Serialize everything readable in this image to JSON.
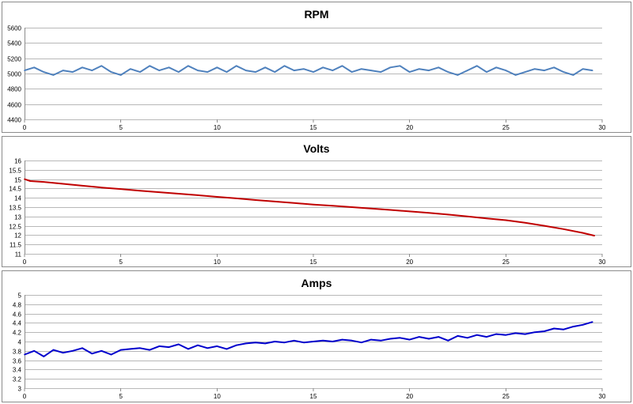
{
  "colors": {
    "rpm": "#4f81bd",
    "volts": "#c00000",
    "amps": "#0000cc",
    "grid": "#b8b8b8"
  },
  "chart_data": [
    {
      "type": "line",
      "title": "RPM",
      "xlim": [
        0,
        30
      ],
      "ylim": [
        4400,
        5600
      ],
      "x_ticks": [
        0,
        5,
        10,
        15,
        20,
        25,
        30
      ],
      "y_ticks": [
        4400,
        4600,
        4800,
        5000,
        5200,
        5400,
        5600
      ],
      "grid": true,
      "legend": "none",
      "series": [
        {
          "color": "#4f81bd",
          "x": [
            0,
            0.5,
            1,
            1.5,
            2,
            2.5,
            3,
            3.5,
            4,
            4.5,
            5,
            5.5,
            6,
            6.5,
            7,
            7.5,
            8,
            8.5,
            9,
            9.5,
            10,
            10.5,
            11,
            11.5,
            12,
            12.5,
            13,
            13.5,
            14,
            14.5,
            15,
            15.5,
            16,
            16.5,
            17,
            17.5,
            18,
            18.5,
            19,
            19.5,
            20,
            20.5,
            21,
            21.5,
            22,
            22.5,
            23,
            23.5,
            24,
            24.5,
            25,
            25.5,
            26,
            26.5,
            27,
            27.5,
            28,
            28.5,
            29,
            29.5
          ],
          "y": [
            5040,
            5080,
            5020,
            4980,
            5040,
            5020,
            5080,
            5040,
            5100,
            5020,
            4980,
            5060,
            5020,
            5100,
            5040,
            5080,
            5020,
            5100,
            5040,
            5020,
            5080,
            5020,
            5100,
            5040,
            5020,
            5080,
            5020,
            5100,
            5040,
            5060,
            5020,
            5080,
            5040,
            5100,
            5020,
            5060,
            5040,
            5020,
            5080,
            5100,
            5020,
            5060,
            5040,
            5080,
            5020,
            4980,
            5040,
            5100,
            5020,
            5080,
            5040,
            4980,
            5020,
            5060,
            5040,
            5080,
            5020,
            4980,
            5060,
            5040
          ]
        }
      ]
    },
    {
      "type": "line",
      "title": "Volts",
      "xlim": [
        0,
        30
      ],
      "ylim": [
        11,
        16
      ],
      "x_ticks": [
        0,
        5,
        10,
        15,
        20,
        25,
        30
      ],
      "y_ticks": [
        11,
        11.5,
        12,
        12.5,
        13,
        13.5,
        14,
        14.5,
        15,
        15.5,
        16
      ],
      "grid": true,
      "legend": "none",
      "series": [
        {
          "color": "#c00000",
          "x": [
            0,
            0.3,
            1,
            2,
            3,
            4,
            5,
            6,
            7,
            8,
            9,
            10,
            11,
            12,
            13,
            14,
            15,
            16,
            17,
            18,
            19,
            20,
            21,
            22,
            23,
            24,
            25,
            26,
            27,
            28,
            29,
            29.6
          ],
          "y": [
            15.0,
            14.9,
            14.85,
            14.75,
            14.65,
            14.55,
            14.47,
            14.38,
            14.3,
            14.22,
            14.14,
            14.05,
            13.97,
            13.88,
            13.8,
            13.72,
            13.64,
            13.57,
            13.5,
            13.43,
            13.35,
            13.27,
            13.19,
            13.1,
            13.0,
            12.9,
            12.8,
            12.66,
            12.5,
            12.32,
            12.12,
            11.97
          ]
        }
      ]
    },
    {
      "type": "line",
      "title": "Amps",
      "xlim": [
        0,
        30
      ],
      "ylim": [
        3,
        5
      ],
      "x_ticks": [
        0,
        5,
        10,
        15,
        20,
        25,
        30
      ],
      "y_ticks": [
        3,
        3.2,
        3.4,
        3.6,
        3.8,
        4,
        4.2,
        4.4,
        4.6,
        4.8,
        5
      ],
      "grid": true,
      "legend": "none",
      "series": [
        {
          "color": "#0000cc",
          "x": [
            0,
            0.5,
            1,
            1.5,
            2,
            2.5,
            3,
            3.5,
            4,
            4.5,
            5,
            5.5,
            6,
            6.5,
            7,
            7.5,
            8,
            8.5,
            9,
            9.5,
            10,
            10.5,
            11,
            11.5,
            12,
            12.5,
            13,
            13.5,
            14,
            14.5,
            15,
            15.5,
            16,
            16.5,
            17,
            17.5,
            18,
            18.5,
            19,
            19.5,
            20,
            20.5,
            21,
            21.5,
            22,
            22.5,
            23,
            23.5,
            24,
            24.5,
            25,
            25.5,
            26,
            26.5,
            27,
            27.5,
            28,
            28.5,
            29,
            29.5
          ],
          "y": [
            3.72,
            3.8,
            3.68,
            3.82,
            3.76,
            3.8,
            3.86,
            3.74,
            3.8,
            3.72,
            3.82,
            3.84,
            3.86,
            3.82,
            3.9,
            3.88,
            3.94,
            3.84,
            3.92,
            3.86,
            3.9,
            3.84,
            3.92,
            3.96,
            3.98,
            3.96,
            4.0,
            3.98,
            4.02,
            3.98,
            4.0,
            4.02,
            4.0,
            4.04,
            4.02,
            3.98,
            4.04,
            4.02,
            4.06,
            4.08,
            4.04,
            4.1,
            4.06,
            4.1,
            4.02,
            4.12,
            4.08,
            4.14,
            4.1,
            4.16,
            4.14,
            4.18,
            4.16,
            4.2,
            4.22,
            4.28,
            4.26,
            4.32,
            4.36,
            4.42
          ]
        }
      ]
    }
  ]
}
